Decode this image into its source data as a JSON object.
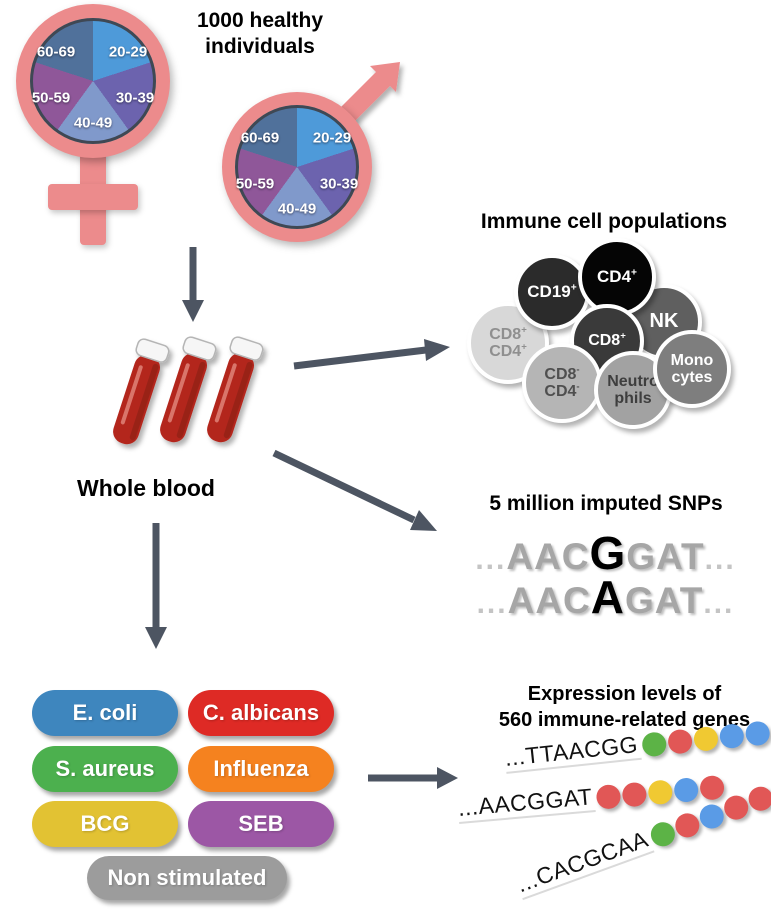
{
  "header": {
    "title": "1000 healthy individuals"
  },
  "age_groups": [
    {
      "label": "20-29",
      "color": "#4E9AD9"
    },
    {
      "label": "30-39",
      "color": "#6C63AE"
    },
    {
      "label": "40-49",
      "color": "#8099CB"
    },
    {
      "label": "50-59",
      "color": "#8F5799"
    },
    {
      "label": "60-69",
      "color": "#50719B"
    }
  ],
  "whole_blood": {
    "label": "Whole blood"
  },
  "immune": {
    "title": "Immune cell populations",
    "cells": [
      {
        "id": "cd8pcd4p",
        "lines": [
          "CD8+",
          "CD4+"
        ],
        "bg": "#D8D8D8",
        "fg": "#8F8F8F"
      },
      {
        "id": "cd19",
        "lines": [
          "CD19+"
        ],
        "bg": "#2B2B2B",
        "fg": "#FFFFFF"
      },
      {
        "id": "nk",
        "lines": [
          "NK"
        ],
        "bg": "#5F5F5F",
        "fg": "#FFFFFF"
      },
      {
        "id": "cd4",
        "lines": [
          "CD4+"
        ],
        "bg": "#050505",
        "fg": "#FFFFFF"
      },
      {
        "id": "cd8",
        "lines": [
          "CD8+"
        ],
        "bg": "#3A3A3A",
        "fg": "#FFFFFF"
      },
      {
        "id": "cd8ncd4n",
        "lines": [
          "CD8-",
          "CD4-"
        ],
        "bg": "#B5B5B5",
        "fg": "#4F4F4F"
      },
      {
        "id": "neutro",
        "lines": [
          "Neutro",
          "phils"
        ],
        "bg": "#A2A2A2",
        "fg": "#3E3E3E"
      },
      {
        "id": "mono",
        "lines": [
          "Mono",
          "cytes"
        ],
        "bg": "#7E7E7E",
        "fg": "#FFFFFF"
      }
    ]
  },
  "snps": {
    "title": "5 million imputed SNPs",
    "sequences": [
      {
        "pre": "...",
        "left": "AAC",
        "snp": "G",
        "right": "GAT",
        "post": "..."
      },
      {
        "pre": "...",
        "left": "AAC",
        "snp": "A",
        "right": "GAT",
        "post": "..."
      }
    ]
  },
  "stimuli": {
    "items": [
      {
        "label": "E. coli",
        "color": "#3E86BE"
      },
      {
        "label": "C. albicans",
        "color": "#DE2A25"
      },
      {
        "label": "S. aureus",
        "color": "#4CB04E"
      },
      {
        "label": "Influenza",
        "color": "#F5821F"
      },
      {
        "label": "BCG",
        "color": "#E2C233"
      },
      {
        "label": "SEB",
        "color": "#9C57A5"
      },
      {
        "label": "Non stimulated",
        "color": "#9C9C9C"
      }
    ]
  },
  "expression": {
    "title_line1": "Expression levels of",
    "title_line2": "560 immune-related genes",
    "dot_colors": {
      "green": "#5CB346",
      "red": "#E15756",
      "yellow": "#F0C932",
      "blue": "#5A9BE6"
    },
    "genes": [
      {
        "seq": "...TTAACGG",
        "dots": [
          "green",
          "red",
          "yellow",
          "blue",
          "blue"
        ]
      },
      {
        "seq": "...AACGGAT",
        "dots": [
          "red",
          "red",
          "yellow",
          "blue",
          "red"
        ]
      },
      {
        "seq": "...CACGCAA",
        "dots": [
          "green",
          "red",
          "blue",
          "red",
          "red"
        ]
      }
    ]
  },
  "colors": {
    "gender_symbol": "#EC8B8C",
    "arrow": "#4D5562",
    "tube_blood": "#B3271E",
    "pie_border": "#3F4854"
  }
}
